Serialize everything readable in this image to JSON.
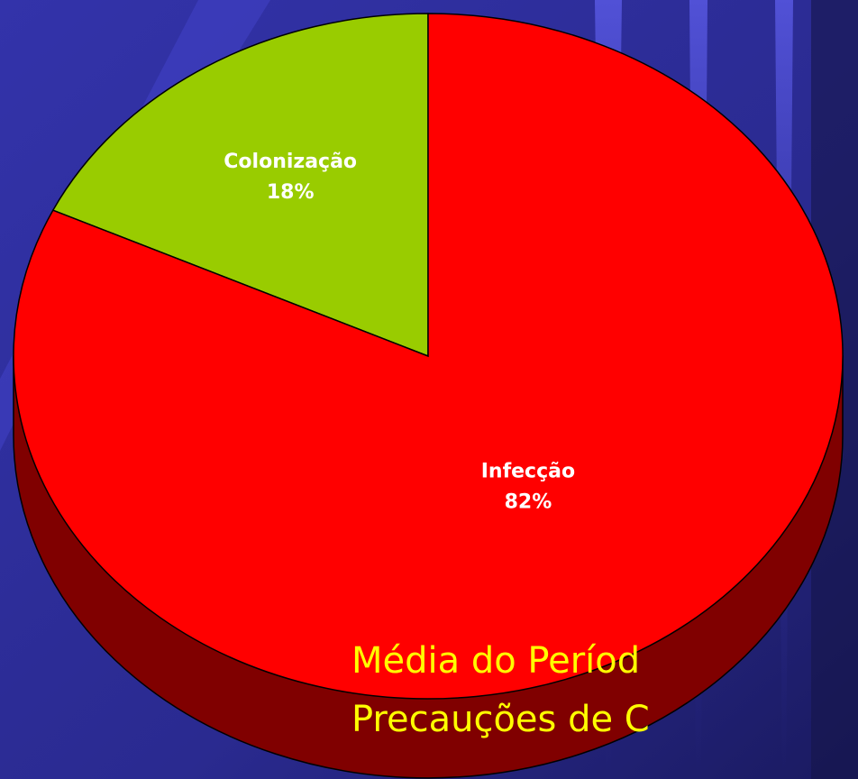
{
  "chart_data": {
    "type": "pie",
    "categories": [
      "Colonização",
      "Infecção"
    ],
    "values": [
      18,
      82
    ],
    "value_labels": [
      "18%",
      "82%"
    ],
    "colors": [
      "#99cc00",
      "#ff0000"
    ],
    "caption": [
      "Média do Períod",
      "Precauções de C"
    ]
  }
}
